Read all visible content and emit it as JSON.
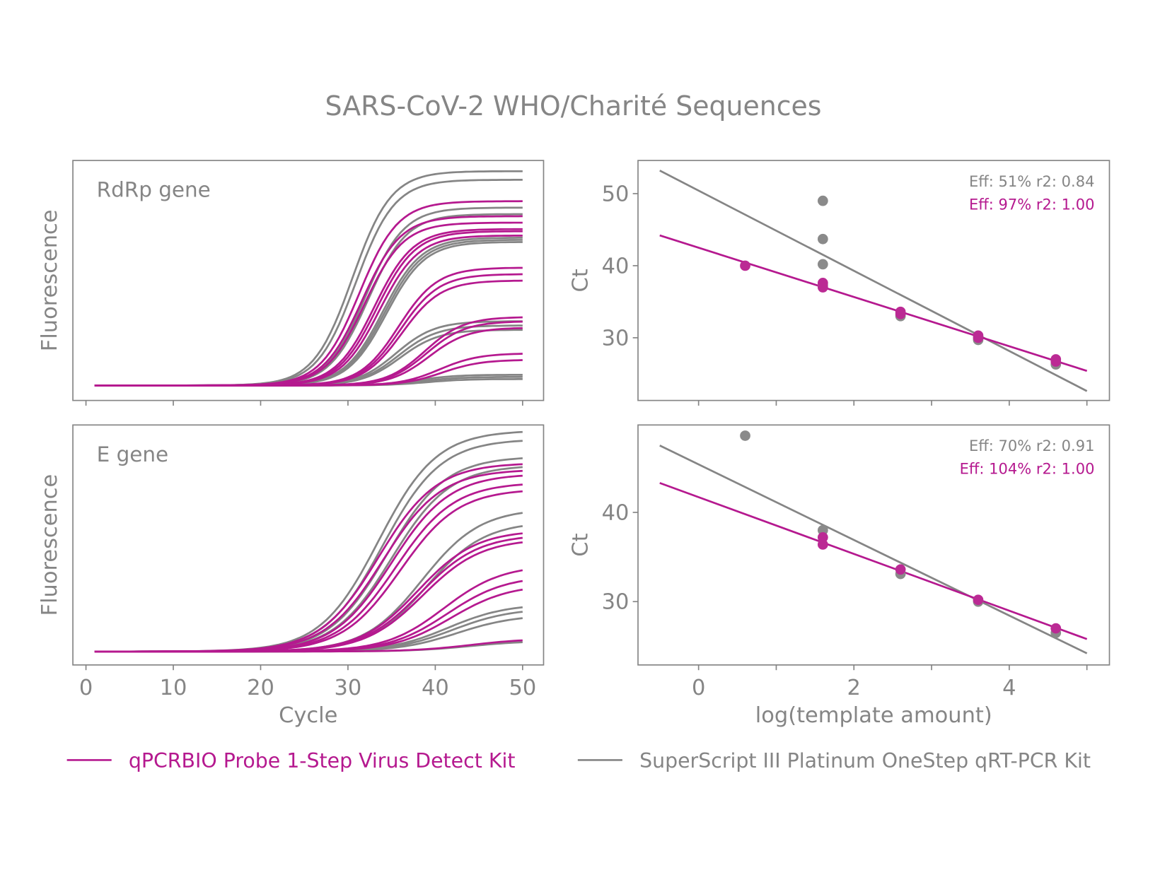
{
  "title": "SARS-CoV-2 WHO/Charité Sequences",
  "colors": {
    "qpcrbio": "#b5198f",
    "superscript": "#858585",
    "axis": "#858585"
  },
  "legend": [
    {
      "label": "qPCRBIO Probe 1-Step Virus Detect Kit",
      "color": "#b5198f"
    },
    {
      "label": "SuperScript III Platinum OneStep qRT-PCR Kit",
      "color": "#858585"
    }
  ],
  "chart_data": [
    {
      "type": "line",
      "panel_label": "RdRp gene",
      "xlabel": "",
      "ylabel": "Fluorescence",
      "xlim": [
        -1.5,
        52.4
      ],
      "ylim": [
        -0.07,
        1.05
      ],
      "xticks": [
        0,
        10,
        20,
        30,
        40,
        50
      ],
      "show_xtick_labels": false,
      "yticks": [],
      "series": [
        {
          "kit": "superscript",
          "curves": [
            {
              "midpoint": 30.5,
              "amplitude": 1.0
            },
            {
              "midpoint": 30.9,
              "amplitude": 0.96
            },
            {
              "midpoint": 32.0,
              "amplitude": 0.83
            },
            {
              "midpoint": 32.3,
              "amplitude": 0.8
            },
            {
              "midpoint": 34.0,
              "amplitude": 0.69
            },
            {
              "midpoint": 34.2,
              "amplitude": 0.68
            },
            {
              "midpoint": 34.4,
              "amplitude": 0.67
            },
            {
              "midpoint": 35.5,
              "amplitude": 0.3
            },
            {
              "midpoint": 35.8,
              "amplitude": 0.28
            },
            {
              "midpoint": 36.0,
              "amplitude": 0.26
            },
            {
              "midpoint": 38.0,
              "amplitude": 0.05
            },
            {
              "midpoint": 38.5,
              "amplitude": 0.04
            },
            {
              "midpoint": 39.0,
              "amplitude": 0.03
            }
          ]
        },
        {
          "kit": "qpcrbio",
          "curves": [
            {
              "midpoint": 31.3,
              "amplitude": 0.86
            },
            {
              "midpoint": 31.6,
              "amplitude": 0.79
            },
            {
              "midpoint": 31.9,
              "amplitude": 0.76
            },
            {
              "midpoint": 33.0,
              "amplitude": 0.73
            },
            {
              "midpoint": 33.3,
              "amplitude": 0.72
            },
            {
              "midpoint": 33.6,
              "amplitude": 0.7
            },
            {
              "midpoint": 35.8,
              "amplitude": 0.55
            },
            {
              "midpoint": 36.0,
              "amplitude": 0.52
            },
            {
              "midpoint": 36.2,
              "amplitude": 0.49
            },
            {
              "midpoint": 38.8,
              "amplitude": 0.32
            },
            {
              "midpoint": 39.0,
              "amplitude": 0.3
            },
            {
              "midpoint": 39.3,
              "amplitude": 0.27
            },
            {
              "midpoint": 40.5,
              "amplitude": 0.15
            },
            {
              "midpoint": 40.8,
              "amplitude": 0.12
            }
          ]
        }
      ]
    },
    {
      "type": "scatter",
      "panel": "RdRp gene",
      "xlabel": "",
      "ylabel": "Ct",
      "xlim": [
        -0.78,
        5.29
      ],
      "ylim": [
        21.3,
        54.6
      ],
      "xticks": [
        0,
        1,
        2,
        3,
        4,
        5
      ],
      "show_xtick_labels": false,
      "yticks": [
        30,
        40,
        50
      ],
      "annotations": [
        {
          "text": "Eff: 51% r2: 0.84",
          "kit": "superscript"
        },
        {
          "text": "Eff: 97% r2: 1.00",
          "kit": "qpcrbio"
        }
      ],
      "series": [
        {
          "kit": "superscript",
          "points": [
            [
              1.6,
              49.0
            ],
            [
              1.6,
              43.7
            ],
            [
              1.6,
              40.2
            ],
            [
              1.6,
              37.3
            ],
            [
              2.6,
              33.0
            ],
            [
              3.6,
              29.7
            ],
            [
              4.6,
              26.3
            ]
          ],
          "fit": [
            [
              -0.5,
              53.2
            ],
            [
              5.0,
              22.6
            ]
          ]
        },
        {
          "kit": "qpcrbio",
          "points": [
            [
              0.6,
              40.0
            ],
            [
              1.6,
              37.6
            ],
            [
              1.6,
              37.0
            ],
            [
              2.6,
              33.6
            ],
            [
              2.6,
              33.3
            ],
            [
              3.6,
              30.3
            ],
            [
              3.6,
              30.0
            ],
            [
              4.6,
              27.0
            ],
            [
              4.6,
              26.7
            ]
          ],
          "fit": [
            [
              -0.5,
              44.2
            ],
            [
              5.0,
              25.4
            ]
          ]
        }
      ]
    },
    {
      "type": "line",
      "panel_label": "E gene",
      "xlabel": "Cycle",
      "ylabel": "Fluorescence",
      "xlim": [
        -1.5,
        52.4
      ],
      "ylim": [
        -0.062,
        1.045
      ],
      "xticks": [
        0,
        10,
        20,
        30,
        40,
        50
      ],
      "show_xtick_labels": true,
      "yticks": [],
      "series": [
        {
          "kit": "superscript",
          "curves": [
            {
              "midpoint": 33.5,
              "amplitude": 1.02
            },
            {
              "midpoint": 34.0,
              "amplitude": 0.98
            },
            {
              "midpoint": 34.5,
              "amplitude": 0.9
            },
            {
              "midpoint": 35.0,
              "amplitude": 0.86
            },
            {
              "midpoint": 38.5,
              "amplitude": 0.66
            },
            {
              "midpoint": 39.0,
              "amplitude": 0.6
            },
            {
              "midpoint": 41.5,
              "amplitude": 0.22
            },
            {
              "midpoint": 42.0,
              "amplitude": 0.2
            },
            {
              "midpoint": 42.5,
              "amplitude": 0.17
            },
            {
              "midpoint": 44.0,
              "amplitude": 0.05
            }
          ]
        },
        {
          "kit": "qpcrbio",
          "curves": [
            {
              "midpoint": 33.5,
              "amplitude": 0.87
            },
            {
              "midpoint": 34.0,
              "amplitude": 0.84
            },
            {
              "midpoint": 35.0,
              "amplitude": 0.82
            },
            {
              "midpoint": 35.5,
              "amplitude": 0.78
            },
            {
              "midpoint": 36.0,
              "amplitude": 0.75
            },
            {
              "midpoint": 38.0,
              "amplitude": 0.56
            },
            {
              "midpoint": 38.3,
              "amplitude": 0.54
            },
            {
              "midpoint": 38.6,
              "amplitude": 0.52
            },
            {
              "midpoint": 41.0,
              "amplitude": 0.4
            },
            {
              "midpoint": 41.4,
              "amplitude": 0.35
            },
            {
              "midpoint": 41.8,
              "amplitude": 0.31
            },
            {
              "midpoint": 44.0,
              "amplitude": 0.06
            }
          ]
        }
      ]
    },
    {
      "type": "scatter",
      "panel": "E gene",
      "xlabel": "log(template amount)",
      "ylabel": "Ct",
      "xlim": [
        -0.78,
        5.29
      ],
      "ylim": [
        22.9,
        49.8
      ],
      "xticks": [
        0,
        1,
        2,
        3,
        4,
        5
      ],
      "xtick_labels": [
        0,
        2,
        4
      ],
      "show_xtick_labels": true,
      "yticks": [
        30,
        40
      ],
      "annotations": [
        {
          "text": "Eff: 70% r2: 0.91",
          "kit": "superscript"
        },
        {
          "text": "Eff: 104% r2: 1.00",
          "kit": "qpcrbio"
        }
      ],
      "series": [
        {
          "kit": "superscript",
          "points": [
            [
              0.6,
              48.6
            ],
            [
              1.6,
              38.0
            ],
            [
              2.6,
              33.1
            ],
            [
              3.6,
              30.0
            ],
            [
              4.6,
              26.5
            ]
          ],
          "fit": [
            [
              -0.5,
              47.5
            ],
            [
              5.0,
              24.2
            ]
          ]
        },
        {
          "kit": "qpcrbio",
          "points": [
            [
              1.6,
              37.2
            ],
            [
              1.6,
              36.4
            ],
            [
              2.6,
              33.6
            ],
            [
              3.6,
              30.2
            ],
            [
              4.6,
              27.0
            ]
          ],
          "fit": [
            [
              -0.5,
              43.3
            ],
            [
              5.0,
              25.8
            ]
          ]
        }
      ]
    }
  ]
}
